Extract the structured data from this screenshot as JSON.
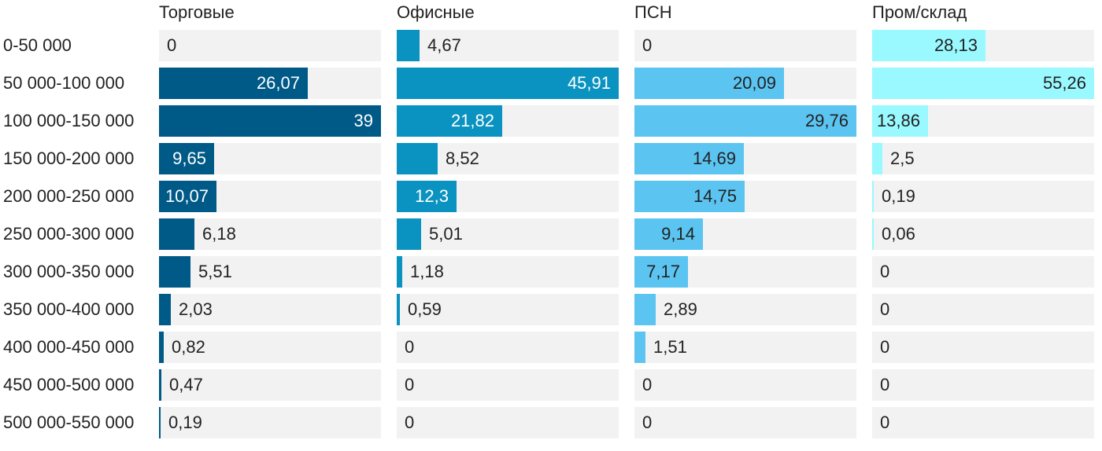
{
  "chart_data": {
    "type": "bar",
    "orientation": "horizontal",
    "layout": "small-multiples",
    "title": "",
    "categories": [
      "0-50 000",
      "50 000-100 000",
      "100 000-150 000",
      "150 000-200 000",
      "200 000-250 000",
      "250 000-300 000",
      "300 000-350 000",
      "350 000-400 000",
      "400 000-450 000",
      "450 000-500 000",
      "500 000-550 000"
    ],
    "series": [
      {
        "name": "Торговые",
        "color": "#005a87",
        "label_color": "#ffffff",
        "max": 39,
        "values": [
          0,
          26.07,
          39,
          9.65,
          10.07,
          6.18,
          5.51,
          2.03,
          0.82,
          0.47,
          0.19
        ],
        "labels": [
          "0",
          "26,07",
          "39",
          "9,65",
          "10,07",
          "6,18",
          "5,51",
          "2,03",
          "0,82",
          "0,47",
          "0,19"
        ]
      },
      {
        "name": "Офисные",
        "color": "#0a92c0",
        "label_color": "#ffffff",
        "max": 45.91,
        "values": [
          4.67,
          45.91,
          21.82,
          8.52,
          12.3,
          5.01,
          1.18,
          0.59,
          0,
          0,
          0
        ],
        "labels": [
          "4,67",
          "45,91",
          "21,82",
          "8,52",
          "12,3",
          "5,01",
          "1,18",
          "0,59",
          "0",
          "0",
          "0"
        ]
      },
      {
        "name": "ПСН",
        "color": "#5bc4f1",
        "label_color": "#222222",
        "max": 29.76,
        "values": [
          0,
          20.09,
          29.76,
          14.69,
          14.75,
          9.14,
          7.17,
          2.89,
          1.51,
          0,
          0
        ],
        "labels": [
          "0",
          "20,09",
          "29,76",
          "14,69",
          "14,75",
          "9,14",
          "7,17",
          "2,89",
          "1,51",
          "0",
          "0"
        ]
      },
      {
        "name": "Пром/склад",
        "color": "#99f9ff",
        "label_color": "#222222",
        "max": 55.26,
        "values": [
          28.13,
          55.26,
          13.86,
          2.5,
          0.19,
          0.06,
          0,
          0,
          0,
          0,
          0
        ],
        "labels": [
          "28,13",
          "55,26",
          "13,86",
          "2,5",
          "0,19",
          "0,06",
          "0",
          "0",
          "0",
          "0",
          "0"
        ]
      }
    ]
  }
}
